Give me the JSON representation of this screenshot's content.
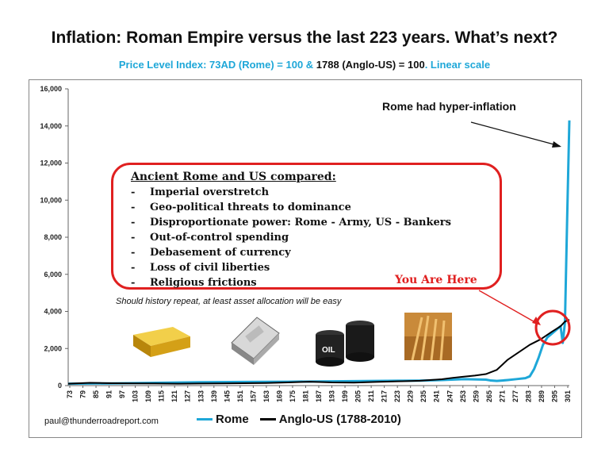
{
  "title": "Inflation: Roman Empire versus the last 223 years. What’s next?",
  "subtitle": {
    "part1": "Price Level Index: 73AD (Rome) = 100 & ",
    "part2": "1788 (Anglo-US) = 100",
    "part3": ". Linear scale"
  },
  "annotations": {
    "hyperinflation": "Rome had hyper-inflation",
    "you_are_here": "You Are Here",
    "history_note": "Should history repeat, at least asset allocation will be easy",
    "email": "paul@thunderroadreport.com"
  },
  "comparison": {
    "heading": "Ancient Rome and US compared:",
    "dash": "-",
    "items": [
      "Imperial overstretch",
      "Geo-political threats to dominance",
      "Disproportionate power: Rome - Army, US - Bankers",
      "Out-of-control spending",
      "Debasement of currency",
      "Loss of civil liberties",
      "Religious frictions"
    ]
  },
  "images": {
    "oil_label": "OIL"
  },
  "colors": {
    "rome": "#1ea7d8",
    "anglo": "#000000",
    "accent_red": "#e02020",
    "gold": "#d4a017"
  },
  "icons": [
    "gold-bar-icon",
    "silver-bar-icon",
    "oil-barrels-icon",
    "wheat-icon"
  ],
  "chart_data": {
    "type": "line",
    "ylim": [
      0,
      16000
    ],
    "yticks": [
      "0",
      "2,000",
      "4,000",
      "6,000",
      "8,000",
      "10,000",
      "12,000",
      "14,000",
      "16,000"
    ],
    "xticks": [
      "73",
      "79",
      "85",
      "91",
      "97",
      "103",
      "109",
      "115",
      "121",
      "127",
      "133",
      "139",
      "145",
      "151",
      "157",
      "163",
      "169",
      "175",
      "181",
      "187",
      "193",
      "199",
      "205",
      "211",
      "217",
      "223",
      "229",
      "235",
      "241",
      "247",
      "253",
      "259",
      "265",
      "271",
      "277",
      "283",
      "289",
      "295",
      "301"
    ],
    "x_index": [
      0,
      3,
      6,
      9,
      12,
      15,
      18,
      21,
      24,
      27,
      30,
      33,
      36,
      37,
      40,
      43,
      46,
      50,
      53,
      56,
      60,
      63,
      66,
      69,
      72,
      75,
      78,
      81,
      84,
      87,
      90,
      93,
      96,
      99,
      102,
      105,
      108,
      111,
      114,
      116,
      118,
      120,
      121,
      122,
      123,
      124,
      125,
      126,
      127,
      128,
      130,
      132,
      134,
      137,
      140,
      143,
      146,
      149,
      152,
      155,
      158,
      161,
      164,
      167,
      170,
      173,
      176,
      178,
      180,
      181,
      182,
      183,
      184,
      185,
      186,
      187,
      188,
      189,
      190,
      191,
      192,
      193,
      194,
      195,
      196,
      197,
      198,
      199,
      200,
      201,
      202,
      203,
      204,
      205,
      206,
      207,
      208,
      209,
      210,
      211,
      212,
      213,
      214,
      215,
      216,
      217,
      218,
      219,
      220,
      221,
      222,
      223,
      224,
      225,
      226,
      227,
      228
    ],
    "x_labels": [
      "73",
      "79",
      "85",
      "91",
      "97",
      "103",
      "109",
      "115",
      "121",
      "127",
      "133",
      "139",
      "145",
      "151",
      "157",
      "163",
      "169",
      "175",
      "181",
      "187",
      "193",
      "199",
      "205",
      "211",
      "217",
      "223",
      "229",
      "235",
      "241",
      "247",
      "253",
      "259",
      "265",
      "271",
      "277",
      "283",
      "289",
      "295",
      "301"
    ],
    "series": [
      {
        "name": "Rome",
        "x": [
          0,
          20,
          40,
          60,
          80,
          100,
          120,
          140,
          150,
          160,
          170,
          180,
          186,
          190,
          192,
          195,
          198,
          200,
          204,
          208,
          210,
          212,
          214,
          216,
          218,
          220,
          222,
          224,
          225,
          226,
          227,
          228
        ],
        "values": [
          100,
          120,
          150,
          180,
          200,
          210,
          230,
          250,
          260,
          270,
          300,
          350,
          330,
          320,
          280,
          250,
          280,
          300,
          350,
          400,
          500,
          900,
          1500,
          2200,
          2600,
          2800,
          3000,
          3200,
          2300,
          3400,
          9000,
          14300
        ]
      },
      {
        "name": "Anglo-US (1788-2010)",
        "x": [
          0,
          10,
          20,
          30,
          40,
          50,
          60,
          70,
          80,
          90,
          100,
          110,
          120,
          130,
          140,
          150,
          160,
          170,
          175,
          180,
          185,
          190,
          195,
          200,
          205,
          210,
          215,
          220,
          224,
          226,
          228
        ],
        "values": [
          100,
          150,
          130,
          120,
          110,
          100,
          110,
          120,
          130,
          140,
          170,
          210,
          170,
          160,
          200,
          230,
          260,
          340,
          420,
          480,
          540,
          620,
          850,
          1400,
          1800,
          2200,
          2500,
          2900,
          3200,
          3450,
          3550
        ]
      }
    ]
  }
}
